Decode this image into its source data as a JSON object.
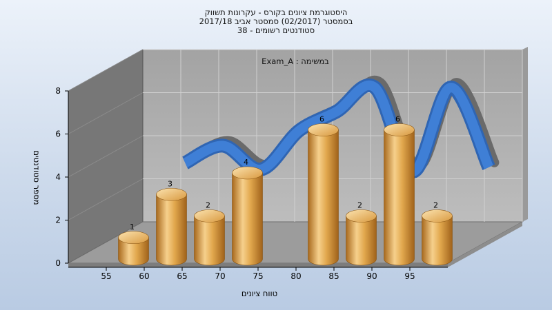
{
  "header": {
    "title_line1": "היסטוגרמת ציונים בקורס - עקרונות תשווק",
    "title_line2": "בסמסטר  (02/2017)  סמסטר אביב 2017/18",
    "title_line3": "סטודנטים רשומים - 38"
  },
  "chart_data": {
    "type": "bar",
    "subtitle": "Exam_A : במשימה",
    "xlabel": "טווח ציונים",
    "ylabel": "מספר סטודנטים",
    "ylim": [
      0,
      8
    ],
    "yticks": [
      "0",
      "2",
      "4",
      "6",
      "8"
    ],
    "categories": [
      "55",
      "60",
      "65",
      "70",
      "75",
      "80",
      "85",
      "90",
      "95"
    ],
    "bars": [
      {
        "bin": "55-60",
        "value": 1,
        "label": "1"
      },
      {
        "bin": "60-65",
        "value": 3,
        "label": "3"
      },
      {
        "bin": "65-70",
        "value": 2,
        "label": "2"
      },
      {
        "bin": "70-75",
        "value": 4,
        "label": "4"
      },
      {
        "bin": "80-85",
        "value": 6,
        "label": "6"
      },
      {
        "bin": "85-90",
        "value": 2,
        "label": "2"
      },
      {
        "bin": "90-95",
        "value": 6,
        "label": "6"
      },
      {
        "bin": "95-100",
        "value": 2,
        "label": "2"
      }
    ],
    "curve": {
      "x": [
        60,
        65,
        70,
        75,
        80,
        85,
        90,
        95,
        100
      ],
      "y": [
        3.6,
        4.4,
        3.3,
        5.1,
        6.0,
        7.1,
        3.2,
        7.1,
        3.4
      ]
    },
    "colors": {
      "bar": "#e0a040",
      "curve_front": "#3f7fd6",
      "curve_back": "#6a6a6a",
      "wall": "#a8a8a8",
      "left_wall": "#777777"
    }
  }
}
